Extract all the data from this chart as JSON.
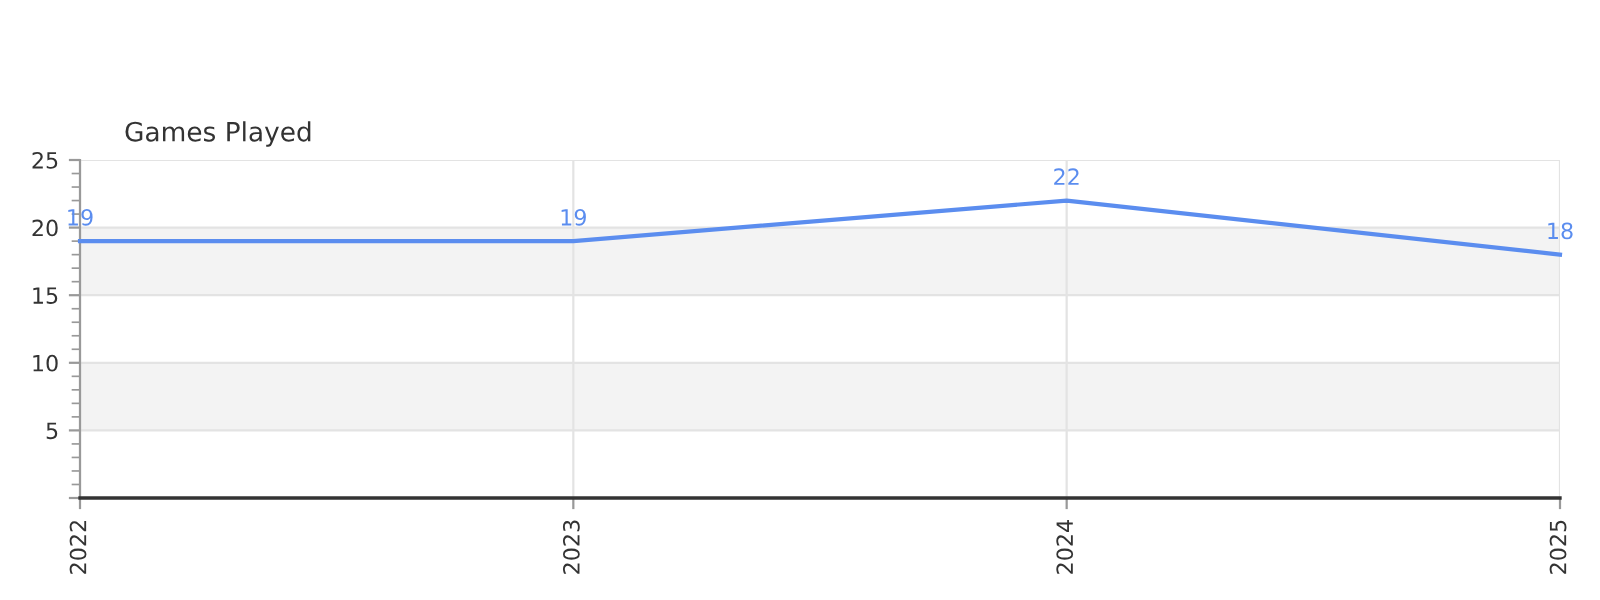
{
  "chart_data": {
    "type": "line",
    "title": "Games Played",
    "x": [
      2022,
      2023,
      2024,
      2025
    ],
    "series": [
      {
        "color": "#5b8def",
        "values": [
          19,
          19,
          22,
          18
        ]
      }
    ],
    "xlim": [
      2022,
      2025
    ],
    "xticks": [
      2022,
      2023,
      2024,
      2025
    ],
    "ylim": [
      0,
      25
    ],
    "yticks": [
      {
        "value": 0,
        "label": null
      },
      5,
      10,
      15,
      20,
      25
    ],
    "bands": [
      {
        "axis": "y",
        "from": 5,
        "to": 10,
        "color": "#f3f3f3"
      },
      {
        "axis": "y",
        "from": 15,
        "to": 20,
        "color": "#f3f3f3"
      }
    ],
    "grid": true,
    "data_labels": true,
    "marker": "none",
    "line_style": "solid",
    "legend": false
  }
}
